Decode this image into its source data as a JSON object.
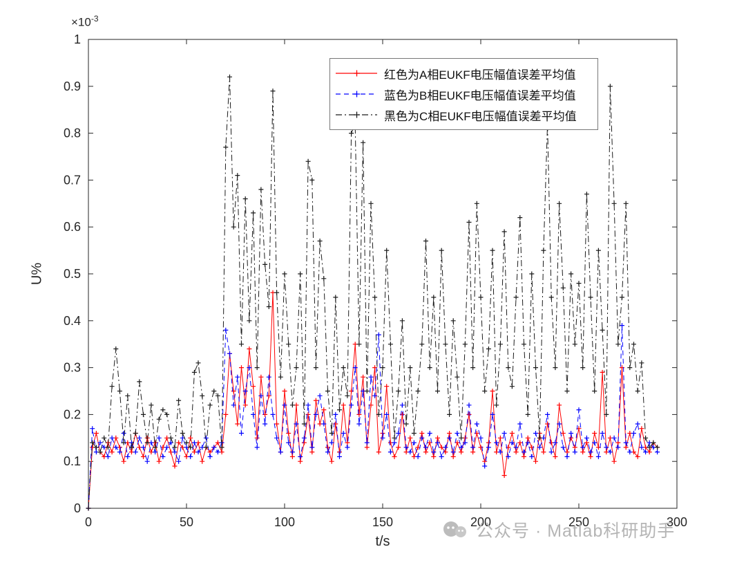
{
  "axes": {
    "x_label": "t/s",
    "y_label": "U%",
    "y_multiplier_base": "×10",
    "y_multiplier_exp": "-3",
    "axis_color": "#262626",
    "x_ticks": [
      0,
      50,
      100,
      150,
      200,
      250,
      300
    ],
    "x_tick_labels": [
      "0",
      "50",
      "100",
      "150",
      "200",
      "250",
      "300"
    ],
    "y_ticks": [
      0,
      0.1,
      0.2,
      0.3,
      0.4,
      0.5,
      0.6,
      0.7,
      0.8,
      0.9,
      1
    ],
    "y_tick_labels": [
      "0",
      "0.1",
      "0.2",
      "0.3",
      "0.4",
      "0.5",
      "0.6",
      "0.7",
      "0.8",
      "0.9",
      "1"
    ]
  },
  "legend": {
    "items": [
      {
        "label": "红色为A相EUKF电压幅值误差平均值",
        "color": "#ff0000",
        "style": "solid"
      },
      {
        "label": "蓝色为B相EUKF电压幅值误差平均值",
        "color": "#0000ff",
        "style": "dashed"
      },
      {
        "label": "黑色为C相EUKF电压幅值误差平均值",
        "color": "#1a1a1a",
        "style": "dashdot"
      }
    ]
  },
  "watermark": {
    "text": "公众号 · Matlab科研助手"
  },
  "chart_data": {
    "type": "line",
    "title": "",
    "xlabel": "t/s",
    "ylabel": "U%",
    "x_range": [
      0,
      300
    ],
    "y_range": [
      0,
      0.001
    ],
    "y_axis_ticks_range": [
      0,
      1
    ],
    "y_axis_multiplier": "×10⁻³",
    "grid": false,
    "legend_position": "top-right",
    "marker": "+",
    "x": [
      0,
      2,
      4,
      6,
      8,
      10,
      12,
      14,
      16,
      18,
      20,
      22,
      24,
      26,
      28,
      30,
      32,
      34,
      36,
      38,
      40,
      42,
      44,
      46,
      48,
      50,
      52,
      54,
      56,
      58,
      60,
      62,
      64,
      66,
      68,
      70,
      72,
      74,
      76,
      78,
      80,
      82,
      84,
      86,
      88,
      90,
      92,
      94,
      96,
      98,
      100,
      102,
      104,
      106,
      108,
      110,
      112,
      114,
      116,
      118,
      120,
      122,
      124,
      126,
      128,
      130,
      132,
      134,
      136,
      138,
      140,
      142,
      144,
      146,
      148,
      150,
      152,
      154,
      156,
      158,
      160,
      162,
      164,
      166,
      168,
      170,
      172,
      174,
      176,
      178,
      180,
      182,
      184,
      186,
      188,
      190,
      192,
      194,
      196,
      198,
      200,
      202,
      204,
      206,
      208,
      210,
      212,
      214,
      216,
      218,
      220,
      222,
      224,
      226,
      228,
      230,
      232,
      234,
      236,
      238,
      240,
      242,
      244,
      246,
      248,
      250,
      252,
      254,
      256,
      258,
      260,
      262,
      264,
      266,
      268,
      270,
      272,
      274,
      276,
      278,
      280,
      282,
      284,
      286,
      288,
      290
    ],
    "series": [
      {
        "id": "a",
        "name": "红色为A相EUKF电压幅值误差平均值",
        "color": "#ff0000",
        "linestyle": "solid",
        "marker": "+",
        "values": [
          0.0,
          0.13,
          0.16,
          0.12,
          0.11,
          0.14,
          0.12,
          0.15,
          0.13,
          0.1,
          0.14,
          0.12,
          0.16,
          0.13,
          0.11,
          0.15,
          0.12,
          0.14,
          0.1,
          0.13,
          0.15,
          0.12,
          0.09,
          0.14,
          0.13,
          0.11,
          0.15,
          0.12,
          0.14,
          0.1,
          0.13,
          0.12,
          0.13,
          0.14,
          0.12,
          0.2,
          0.33,
          0.25,
          0.18,
          0.3,
          0.22,
          0.34,
          0.26,
          0.15,
          0.28,
          0.2,
          0.24,
          0.46,
          0.18,
          0.12,
          0.25,
          0.16,
          0.11,
          0.22,
          0.1,
          0.14,
          0.2,
          0.12,
          0.23,
          0.18,
          0.21,
          0.13,
          0.1,
          0.18,
          0.12,
          0.22,
          0.14,
          0.25,
          0.35,
          0.2,
          0.28,
          0.13,
          0.22,
          0.3,
          0.12,
          0.16,
          0.26,
          0.14,
          0.11,
          0.13,
          0.2,
          0.12,
          0.15,
          0.11,
          0.13,
          0.16,
          0.12,
          0.14,
          0.11,
          0.15,
          0.13,
          0.12,
          0.16,
          0.11,
          0.14,
          0.12,
          0.15,
          0.2,
          0.12,
          0.16,
          0.13,
          0.1,
          0.14,
          0.25,
          0.12,
          0.15,
          0.07,
          0.13,
          0.16,
          0.12,
          0.14,
          0.11,
          0.15,
          0.13,
          0.1,
          0.16,
          0.12,
          0.18,
          0.14,
          0.11,
          0.22,
          0.16,
          0.12,
          0.15,
          0.13,
          0.17,
          0.12,
          0.14,
          0.11,
          0.16,
          0.13,
          0.29,
          0.12,
          0.15,
          0.1,
          0.14,
          0.3,
          0.13,
          0.16,
          0.12,
          0.11,
          0.17,
          0.13,
          0.12,
          0.14,
          0.13
        ]
      },
      {
        "id": "b",
        "name": "蓝色为B相EUKF电压幅值误差平均值",
        "color": "#0000ff",
        "linestyle": "dashed",
        "marker": "+",
        "values": [
          0.0,
          0.17,
          0.12,
          0.14,
          0.13,
          0.11,
          0.15,
          0.13,
          0.12,
          0.16,
          0.11,
          0.14,
          0.12,
          0.15,
          0.13,
          0.1,
          0.14,
          0.12,
          0.15,
          0.11,
          0.13,
          0.14,
          0.12,
          0.1,
          0.15,
          0.13,
          0.11,
          0.14,
          0.12,
          0.13,
          0.15,
          0.11,
          0.13,
          0.12,
          0.14,
          0.38,
          0.33,
          0.22,
          0.28,
          0.16,
          0.25,
          0.3,
          0.2,
          0.13,
          0.24,
          0.18,
          0.28,
          0.2,
          0.15,
          0.12,
          0.22,
          0.14,
          0.12,
          0.18,
          0.11,
          0.15,
          0.22,
          0.13,
          0.2,
          0.24,
          0.18,
          0.12,
          0.14,
          0.2,
          0.11,
          0.16,
          0.13,
          0.22,
          0.3,
          0.18,
          0.25,
          0.14,
          0.28,
          0.24,
          0.37,
          0.15,
          0.2,
          0.12,
          0.14,
          0.16,
          0.22,
          0.13,
          0.12,
          0.14,
          0.11,
          0.15,
          0.13,
          0.16,
          0.12,
          0.14,
          0.11,
          0.13,
          0.15,
          0.12,
          0.16,
          0.13,
          0.14,
          0.22,
          0.13,
          0.18,
          0.15,
          0.09,
          0.13,
          0.2,
          0.14,
          0.12,
          0.16,
          0.11,
          0.14,
          0.13,
          0.18,
          0.12,
          0.14,
          0.11,
          0.16,
          0.13,
          0.15,
          0.2,
          0.12,
          0.14,
          0.18,
          0.13,
          0.11,
          0.16,
          0.12,
          0.21,
          0.13,
          0.15,
          0.12,
          0.14,
          0.11,
          0.16,
          0.13,
          0.12,
          0.15,
          0.13,
          0.39,
          0.14,
          0.12,
          0.16,
          0.18,
          0.13,
          0.12,
          0.14,
          0.13,
          0.12
        ]
      },
      {
        "id": "c",
        "name": "黑色为C相EUKF电压幅值误差平均值",
        "color": "#1a1a1a",
        "linestyle": "dashdot",
        "marker": "+",
        "values": [
          0.0,
          0.14,
          0.13,
          0.12,
          0.15,
          0.13,
          0.26,
          0.34,
          0.25,
          0.14,
          0.24,
          0.13,
          0.16,
          0.27,
          0.2,
          0.14,
          0.22,
          0.13,
          0.19,
          0.21,
          0.2,
          0.15,
          0.13,
          0.23,
          0.16,
          0.14,
          0.13,
          0.29,
          0.31,
          0.24,
          0.13,
          0.22,
          0.25,
          0.24,
          0.13,
          0.77,
          0.92,
          0.6,
          0.71,
          0.35,
          0.66,
          0.4,
          0.63,
          0.3,
          0.68,
          0.52,
          0.43,
          0.89,
          0.46,
          0.28,
          0.5,
          0.35,
          0.22,
          0.3,
          0.5,
          0.18,
          0.74,
          0.7,
          0.3,
          0.57,
          0.49,
          0.25,
          0.16,
          0.45,
          0.21,
          0.3,
          0.24,
          0.8,
          0.82,
          0.35,
          0.78,
          0.25,
          0.65,
          0.45,
          0.2,
          0.3,
          0.55,
          0.35,
          0.15,
          0.25,
          0.4,
          0.18,
          0.3,
          0.16,
          0.25,
          0.35,
          0.57,
          0.3,
          0.45,
          0.25,
          0.55,
          0.35,
          0.2,
          0.4,
          0.28,
          0.15,
          0.35,
          0.61,
          0.3,
          0.65,
          0.45,
          0.25,
          0.34,
          0.55,
          0.22,
          0.35,
          0.59,
          0.3,
          0.26,
          0.45,
          0.62,
          0.35,
          0.2,
          0.5,
          0.3,
          0.15,
          0.55,
          0.82,
          0.45,
          0.3,
          0.65,
          0.47,
          0.25,
          0.5,
          0.35,
          0.48,
          0.3,
          0.67,
          0.45,
          0.25,
          0.55,
          0.38,
          0.2,
          0.9,
          0.65,
          0.35,
          0.45,
          0.65,
          0.3,
          0.35,
          0.25,
          0.31,
          0.15,
          0.13,
          0.14,
          0.13
        ]
      }
    ]
  }
}
